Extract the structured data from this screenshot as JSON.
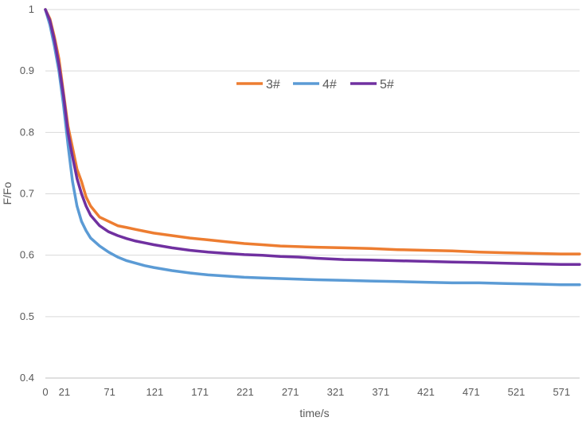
{
  "chart_data": {
    "type": "line",
    "title": "",
    "xlabel": "time/s",
    "ylabel": "F/Fo",
    "xlim": [
      0,
      591
    ],
    "ylim": [
      0.4,
      1.0
    ],
    "grid": "horizontal",
    "legend_position": "top-center",
    "x_tick_labels": [
      "0",
      "21",
      "71",
      "121",
      "171",
      "221",
      "271",
      "321",
      "371",
      "421",
      "471",
      "521",
      "571"
    ],
    "x_tick_values": [
      0,
      21,
      71,
      121,
      171,
      221,
      271,
      321,
      371,
      421,
      471,
      521,
      571
    ],
    "y_tick_labels": [
      "0.4",
      "0.5",
      "0.6",
      "0.7",
      "0.8",
      "0.9",
      "1"
    ],
    "y_tick_values": [
      0.4,
      0.5,
      0.6,
      0.7,
      0.8,
      0.9,
      1.0
    ],
    "x": [
      0,
      5,
      10,
      15,
      20,
      25,
      30,
      35,
      40,
      45,
      50,
      60,
      70,
      80,
      90,
      100,
      110,
      120,
      140,
      160,
      180,
      200,
      220,
      240,
      260,
      280,
      300,
      330,
      360,
      390,
      420,
      450,
      480,
      510,
      540,
      570,
      591
    ],
    "series": [
      {
        "name": "3#",
        "color": "#ED7D31",
        "values": [
          1.0,
          0.985,
          0.955,
          0.92,
          0.865,
          0.81,
          0.775,
          0.74,
          0.72,
          0.695,
          0.68,
          0.662,
          0.655,
          0.648,
          0.645,
          0.642,
          0.639,
          0.636,
          0.632,
          0.628,
          0.625,
          0.622,
          0.619,
          0.617,
          0.615,
          0.614,
          0.613,
          0.612,
          0.611,
          0.609,
          0.608,
          0.607,
          0.605,
          0.604,
          0.603,
          0.602,
          0.602
        ]
      },
      {
        "name": "4#",
        "color": "#5B9BD5",
        "values": [
          1.0,
          0.975,
          0.94,
          0.9,
          0.845,
          0.78,
          0.72,
          0.68,
          0.655,
          0.64,
          0.628,
          0.615,
          0.605,
          0.597,
          0.591,
          0.587,
          0.583,
          0.58,
          0.575,
          0.571,
          0.568,
          0.566,
          0.564,
          0.563,
          0.562,
          0.561,
          0.56,
          0.559,
          0.558,
          0.557,
          0.556,
          0.555,
          0.555,
          0.554,
          0.553,
          0.552,
          0.552
        ]
      },
      {
        "name": "5#",
        "color": "#7030A0",
        "values": [
          1.0,
          0.982,
          0.95,
          0.91,
          0.86,
          0.8,
          0.76,
          0.725,
          0.7,
          0.68,
          0.665,
          0.648,
          0.638,
          0.632,
          0.627,
          0.623,
          0.62,
          0.617,
          0.612,
          0.608,
          0.605,
          0.603,
          0.601,
          0.6,
          0.598,
          0.597,
          0.595,
          0.593,
          0.592,
          0.591,
          0.59,
          0.589,
          0.588,
          0.587,
          0.586,
          0.585,
          0.585
        ]
      }
    ]
  }
}
